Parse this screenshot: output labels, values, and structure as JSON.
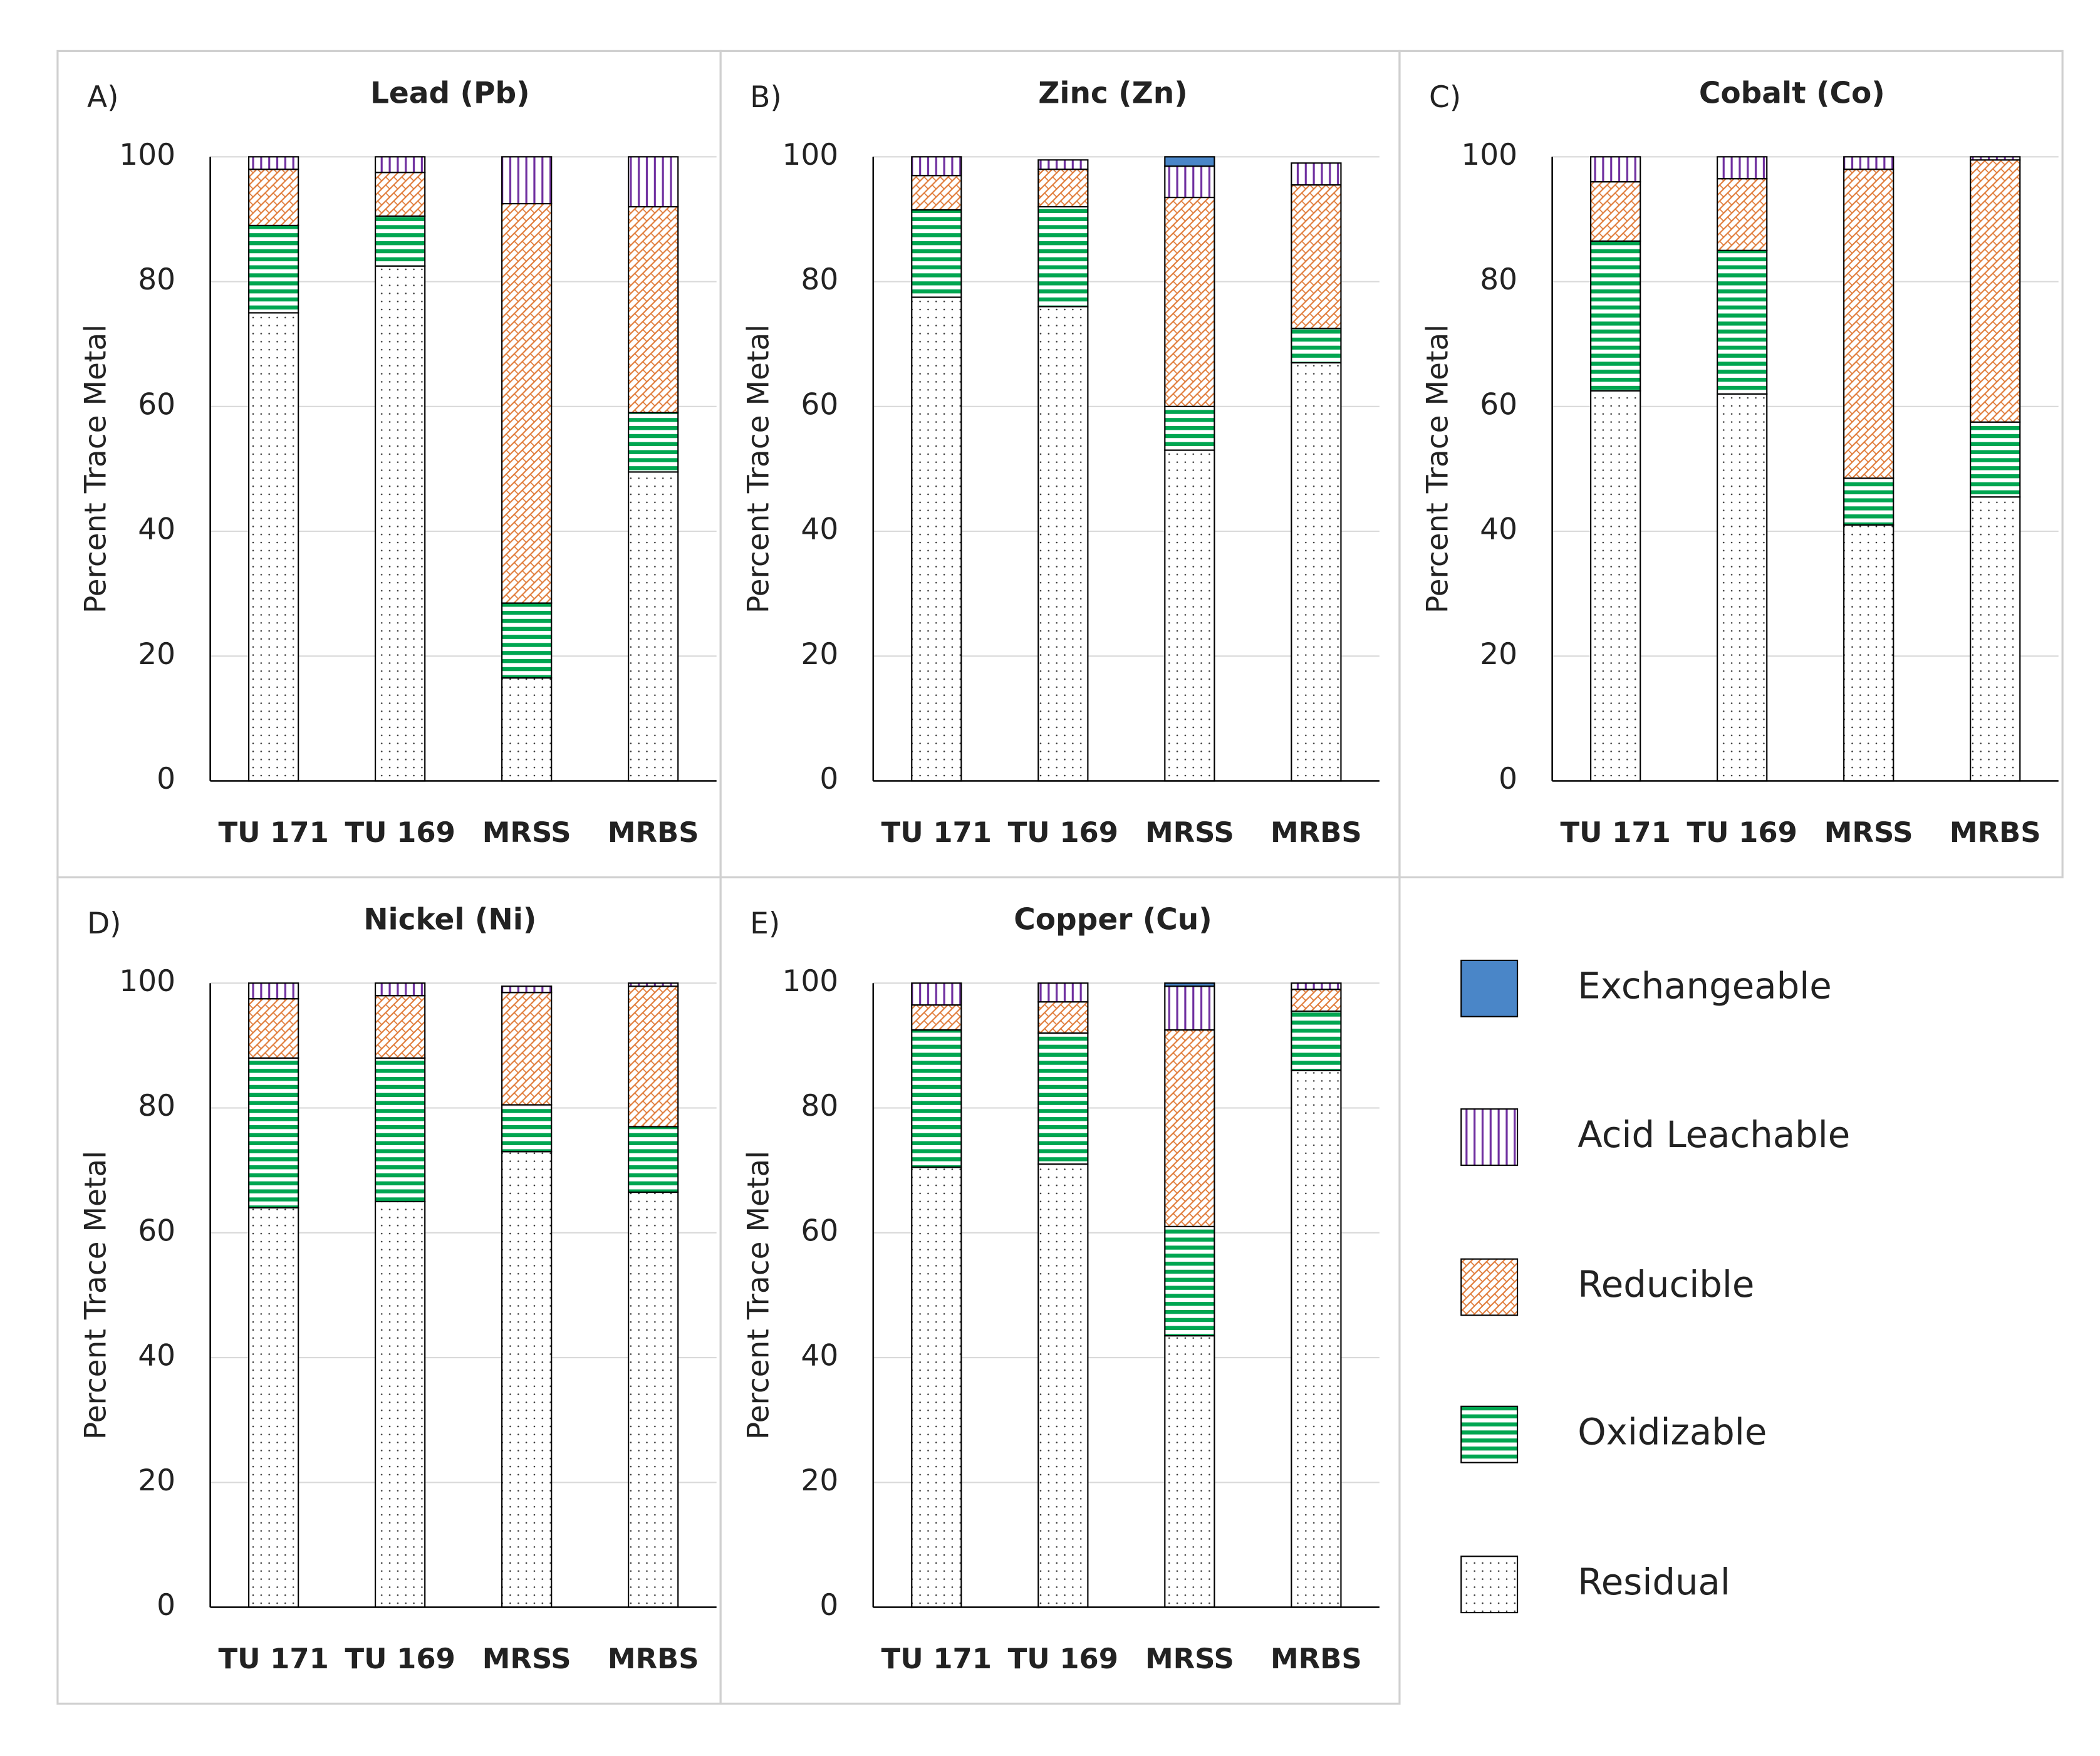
{
  "chart_data": [
    {
      "type": "bar",
      "stacked": true,
      "panel_label": "A)",
      "title": "Lead (Pb)",
      "ylabel": "Percent Trace Metal",
      "categories": [
        "TU 171",
        "TU 169",
        "MRSS",
        "MRBS"
      ],
      "ylim": [
        0,
        100
      ],
      "yticks": [
        0,
        20,
        40,
        60,
        80,
        100
      ],
      "grid": true,
      "series": [
        {
          "name": "Exchangeable",
          "color": "#4a86c8",
          "values": [
            0,
            0,
            0,
            0
          ]
        },
        {
          "name": "Acid Leachable",
          "color": "#7030a0",
          "values": [
            2,
            2.5,
            7.5,
            8
          ]
        },
        {
          "name": "Reducible",
          "color": "#e07b39",
          "values": [
            9,
            7,
            64,
            33
          ]
        },
        {
          "name": "Oxidizable",
          "color": "#00a651",
          "values": [
            14,
            8,
            12,
            9.5
          ]
        },
        {
          "name": "Residual",
          "color": "#333333",
          "values": [
            75,
            82.5,
            16.5,
            49.5
          ]
        }
      ]
    },
    {
      "type": "bar",
      "stacked": true,
      "panel_label": "B)",
      "title": "Zinc (Zn)",
      "ylabel": "Percent Trace Metal",
      "categories": [
        "TU 171",
        "TU 169",
        "MRSS",
        "MRBS"
      ],
      "ylim": [
        0,
        100
      ],
      "yticks": [
        0,
        20,
        40,
        60,
        80,
        100
      ],
      "grid": true,
      "series": [
        {
          "name": "Exchangeable",
          "color": "#4a86c8",
          "values": [
            0,
            0,
            1.5,
            0
          ]
        },
        {
          "name": "Acid Leachable",
          "color": "#7030a0",
          "values": [
            3,
            1.5,
            5,
            3.5
          ]
        },
        {
          "name": "Reducible",
          "color": "#e07b39",
          "values": [
            5.5,
            6,
            33.5,
            23
          ]
        },
        {
          "name": "Oxidizable",
          "color": "#00a651",
          "values": [
            14,
            16,
            7,
            5.5
          ]
        },
        {
          "name": "Residual",
          "color": "#333333",
          "values": [
            77.5,
            76,
            53,
            67
          ]
        }
      ]
    },
    {
      "type": "bar",
      "stacked": true,
      "panel_label": "C)",
      "title": "Cobalt (Co)",
      "ylabel": "Percent Trace Metal",
      "categories": [
        "TU 171",
        "TU 169",
        "MRSS",
        "MRBS"
      ],
      "ylim": [
        0,
        100
      ],
      "yticks": [
        0,
        20,
        40,
        60,
        80,
        100
      ],
      "grid": true,
      "series": [
        {
          "name": "Exchangeable",
          "color": "#4a86c8",
          "values": [
            0,
            0,
            0,
            0
          ]
        },
        {
          "name": "Acid Leachable",
          "color": "#7030a0",
          "values": [
            4,
            3.5,
            2,
            0.5
          ]
        },
        {
          "name": "Reducible",
          "color": "#e07b39",
          "values": [
            9.5,
            11.5,
            49.5,
            42
          ]
        },
        {
          "name": "Oxidizable",
          "color": "#00a651",
          "values": [
            24,
            23,
            7.5,
            12
          ]
        },
        {
          "name": "Residual",
          "color": "#333333",
          "values": [
            62.5,
            62,
            41,
            45.5
          ]
        }
      ]
    },
    {
      "type": "bar",
      "stacked": true,
      "panel_label": "D)",
      "title": "Nickel (Ni)",
      "ylabel": "Percent Trace Metal",
      "categories": [
        "TU 171",
        "TU 169",
        "MRSS",
        "MRBS"
      ],
      "ylim": [
        0,
        100
      ],
      "yticks": [
        0,
        20,
        40,
        60,
        80,
        100
      ],
      "grid": true,
      "series": [
        {
          "name": "Exchangeable",
          "color": "#4a86c8",
          "values": [
            0,
            0,
            0,
            0
          ]
        },
        {
          "name": "Acid Leachable",
          "color": "#7030a0",
          "values": [
            2.5,
            2,
            1,
            0.5
          ]
        },
        {
          "name": "Reducible",
          "color": "#e07b39",
          "values": [
            9.5,
            10,
            18,
            22.5
          ]
        },
        {
          "name": "Oxidizable",
          "color": "#00a651",
          "values": [
            24,
            23,
            7.5,
            10.5
          ]
        },
        {
          "name": "Residual",
          "color": "#333333",
          "values": [
            64,
            65,
            73,
            66.5
          ]
        }
      ]
    },
    {
      "type": "bar",
      "stacked": true,
      "panel_label": "E)",
      "title": "Copper (Cu)",
      "ylabel": "Percent Trace Metal",
      "categories": [
        "TU 171",
        "TU 169",
        "MRSS",
        "MRBS"
      ],
      "ylim": [
        0,
        100
      ],
      "yticks": [
        0,
        20,
        40,
        60,
        80,
        100
      ],
      "grid": true,
      "series": [
        {
          "name": "Exchangeable",
          "color": "#4a86c8",
          "values": [
            0,
            0,
            0.5,
            0
          ]
        },
        {
          "name": "Acid Leachable",
          "color": "#7030a0",
          "values": [
            3.5,
            3,
            7,
            1
          ]
        },
        {
          "name": "Reducible",
          "color": "#e07b39",
          "values": [
            4,
            5,
            31.5,
            3.5
          ]
        },
        {
          "name": "Oxidizable",
          "color": "#00a651",
          "values": [
            22,
            21,
            17.5,
            9.5
          ]
        },
        {
          "name": "Residual",
          "color": "#333333",
          "values": [
            70.5,
            71,
            43.5,
            86
          ]
        }
      ]
    }
  ]
}
